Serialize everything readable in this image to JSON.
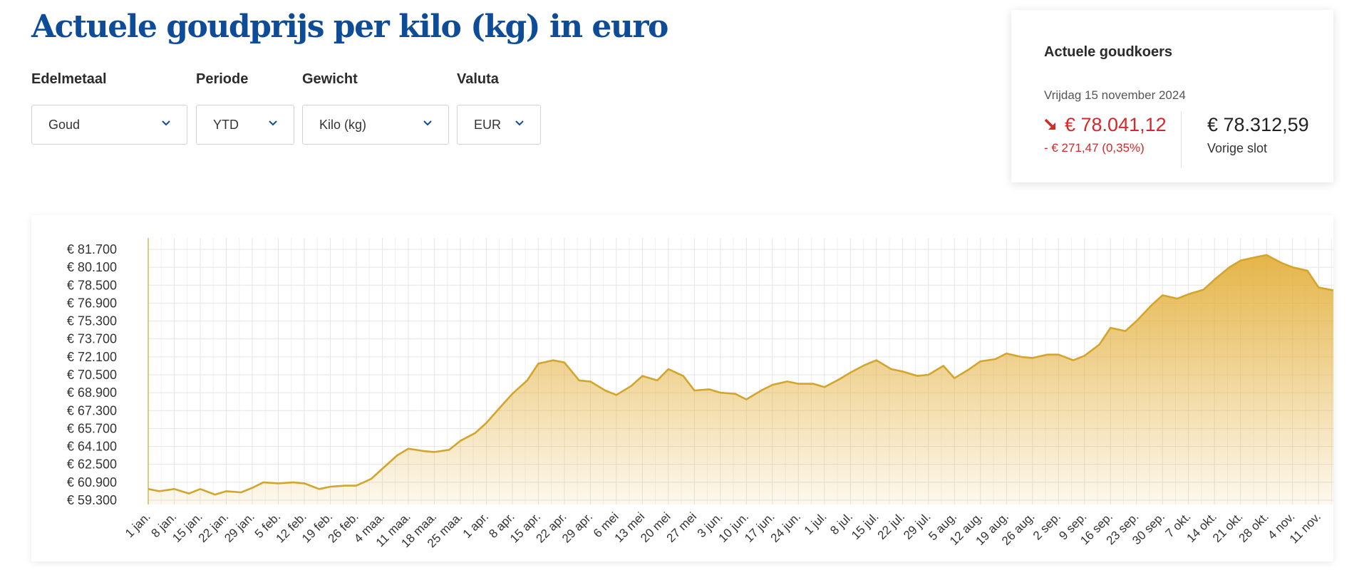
{
  "header": {
    "title": "Actuele goudprijs per kilo (kg) in euro"
  },
  "filters": [
    {
      "label": "Edelmetaal",
      "value": "Goud"
    },
    {
      "label": "Periode",
      "value": "YTD"
    },
    {
      "label": "Gewicht",
      "value": "Kilo (kg)"
    },
    {
      "label": "Valuta",
      "value": "EUR"
    }
  ],
  "summary": {
    "title": "Actuele goudkoers",
    "date": "Vrijdag 15 november 2024",
    "current_price": "€ 78.041,12",
    "change": "- € 271,47 (0,35%)",
    "previous_price": "€ 78.312,59",
    "previous_label": "Vorige slot",
    "trend": "down"
  },
  "colors": {
    "title": "#0f4c97",
    "negative": "#d62828",
    "line": "#d4a52c",
    "fill": "#e3b13f"
  },
  "chart_data": {
    "type": "area",
    "title": "",
    "xlabel": "",
    "ylabel": "",
    "currency": "EUR",
    "ylim": [
      59300,
      81700
    ],
    "y_ticks": [
      "€ 81.700",
      "€ 80.100",
      "€ 78.500",
      "€ 76.900",
      "€ 75.300",
      "€ 73.700",
      "€ 72.100",
      "€ 70.500",
      "€ 68.900",
      "€ 67.300",
      "€ 65.700",
      "€ 64.100",
      "€ 62.500",
      "€ 60.900",
      "€ 59.300"
    ],
    "x_ticks": [
      "1 jan.",
      "8 jan.",
      "15 jan.",
      "22 jan.",
      "29 jan.",
      "5 feb.",
      "12 feb.",
      "19 feb.",
      "26 feb.",
      "4 maa.",
      "11 maa.",
      "18 maa.",
      "25 maa.",
      "1 apr.",
      "8 apr.",
      "15 apr.",
      "22 apr.",
      "29 apr.",
      "6 mei",
      "13 mei",
      "20 mei",
      "27 mei",
      "3 jun.",
      "10 jun.",
      "17 jun.",
      "24 jun.",
      "1 jul.",
      "8 jul.",
      "15 jul.",
      "22 jul.",
      "29 jul.",
      "5 aug.",
      "12 aug.",
      "19 aug.",
      "26 aug.",
      "2 sep.",
      "9 sep.",
      "16 sep.",
      "23 sep.",
      "30 sep.",
      "7 okt.",
      "14 okt.",
      "21 okt.",
      "28 okt.",
      "4 nov.",
      "11 nov."
    ],
    "grid": true,
    "legend": "none",
    "series": [
      {
        "x": [
          "1 jan.",
          "4 jan.",
          "8 jan.",
          "12 jan.",
          "15 jan.",
          "19 jan.",
          "22 jan.",
          "26 jan.",
          "29 jan.",
          "1 feb.",
          "5 feb.",
          "9 feb.",
          "12 feb.",
          "16 feb.",
          "19 feb.",
          "23 feb.",
          "26 feb.",
          "1 maa.",
          "4 maa.",
          "8 maa.",
          "11 maa.",
          "15 maa.",
          "18 maa.",
          "22 maa.",
          "25 maa.",
          "29 maa.",
          "1 apr.",
          "5 apr.",
          "8 apr.",
          "12 apr.",
          "15 apr.",
          "19 apr.",
          "22 apr.",
          "26 apr.",
          "29 apr.",
          "3 mei",
          "6 mei",
          "10 mei",
          "13 mei",
          "17 mei",
          "20 mei",
          "24 mei",
          "27 mei",
          "31 mei",
          "3 jun.",
          "7 jun.",
          "10 jun.",
          "14 jun.",
          "17 jun.",
          "21 jun.",
          "24 jun.",
          "28 jun.",
          "1 jul.",
          "5 jul.",
          "8 jul.",
          "12 jul.",
          "15 jul.",
          "19 jul.",
          "22 jul.",
          "26 jul.",
          "29 jul.",
          "2 aug.",
          "5 aug.",
          "9 aug.",
          "12 aug.",
          "16 aug.",
          "19 aug.",
          "23 aug.",
          "26 aug.",
          "30 aug.",
          "2 sep.",
          "6 sep.",
          "9 sep.",
          "13 sep.",
          "16 sep.",
          "20 sep.",
          "23 sep.",
          "27 sep.",
          "30 sep.",
          "4 okt.",
          "7 okt.",
          "11 okt.",
          "14 okt.",
          "18 okt.",
          "21 okt.",
          "25 okt.",
          "28 okt.",
          "1 nov.",
          "4 nov.",
          "8 nov.",
          "11 nov.",
          "15 nov."
        ],
        "values": [
          60300,
          60100,
          60300,
          59900,
          60300,
          59800,
          60100,
          60000,
          60400,
          60900,
          60800,
          60900,
          60800,
          60300,
          60500,
          60600,
          60600,
          61200,
          62100,
          63300,
          63900,
          63700,
          63600,
          63800,
          64600,
          65300,
          66200,
          67700,
          68800,
          70000,
          71500,
          71800,
          71600,
          70000,
          69900,
          69100,
          68700,
          69500,
          70400,
          70000,
          71000,
          70400,
          69100,
          69200,
          68900,
          68800,
          68300,
          69100,
          69600,
          69900,
          69700,
          69700,
          69400,
          70100,
          70700,
          71400,
          71800,
          71000,
          70800,
          70400,
          70500,
          71300,
          70200,
          71000,
          71700,
          71900,
          72400,
          72100,
          72000,
          72300,
          72300,
          71800,
          72200,
          73200,
          74700,
          74400,
          75300,
          76700,
          77600,
          77300,
          77700,
          78100,
          79000,
          80100,
          80700,
          81000,
          81200,
          80500,
          80100,
          79800,
          78300,
          78041
        ]
      }
    ]
  }
}
